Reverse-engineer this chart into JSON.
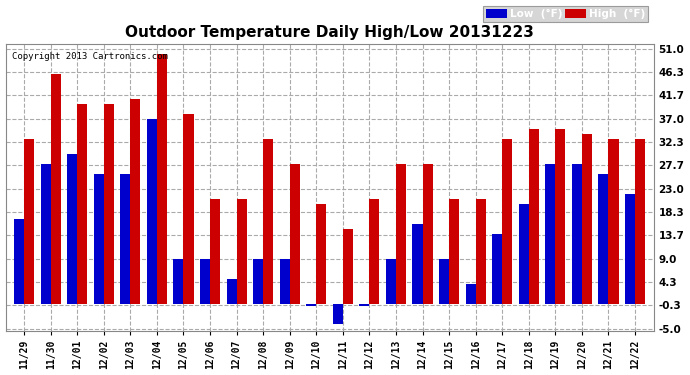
{
  "title": "Outdoor Temperature Daily High/Low 20131223",
  "copyright": "Copyright 2013 Cartronics.com",
  "legend_low": "Low  (°F)",
  "legend_high": "High  (°F)",
  "dates": [
    "11/29",
    "11/30",
    "12/01",
    "12/02",
    "12/03",
    "12/04",
    "12/05",
    "12/06",
    "12/07",
    "12/08",
    "12/09",
    "12/10",
    "12/11",
    "12/12",
    "12/13",
    "12/14",
    "12/15",
    "12/16",
    "12/17",
    "12/18",
    "12/19",
    "12/20",
    "12/21",
    "12/22"
  ],
  "low_values": [
    17,
    28,
    30,
    26,
    26,
    37,
    9,
    9,
    5,
    9,
    9,
    -0.5,
    -4,
    -0.5,
    9,
    16,
    9,
    4,
    14,
    20,
    28,
    28,
    26,
    22
  ],
  "high_values": [
    33,
    46,
    40,
    40,
    41,
    50,
    38,
    21,
    21,
    33,
    28,
    20,
    15,
    21,
    28,
    28,
    21,
    21,
    33,
    35,
    35,
    34,
    33,
    33
  ],
  "low_color": "#0000cc",
  "high_color": "#cc0000",
  "bg_color": "#ffffff",
  "plot_bg_color": "#ffffff",
  "grid_color": "#aaaaaa",
  "yticks": [
    -5.0,
    -0.3,
    4.3,
    9.0,
    13.7,
    18.3,
    23.0,
    27.7,
    32.3,
    37.0,
    41.7,
    46.3,
    51.0
  ],
  "ylim": [
    -5.5,
    52.0
  ],
  "bar_width": 0.38
}
